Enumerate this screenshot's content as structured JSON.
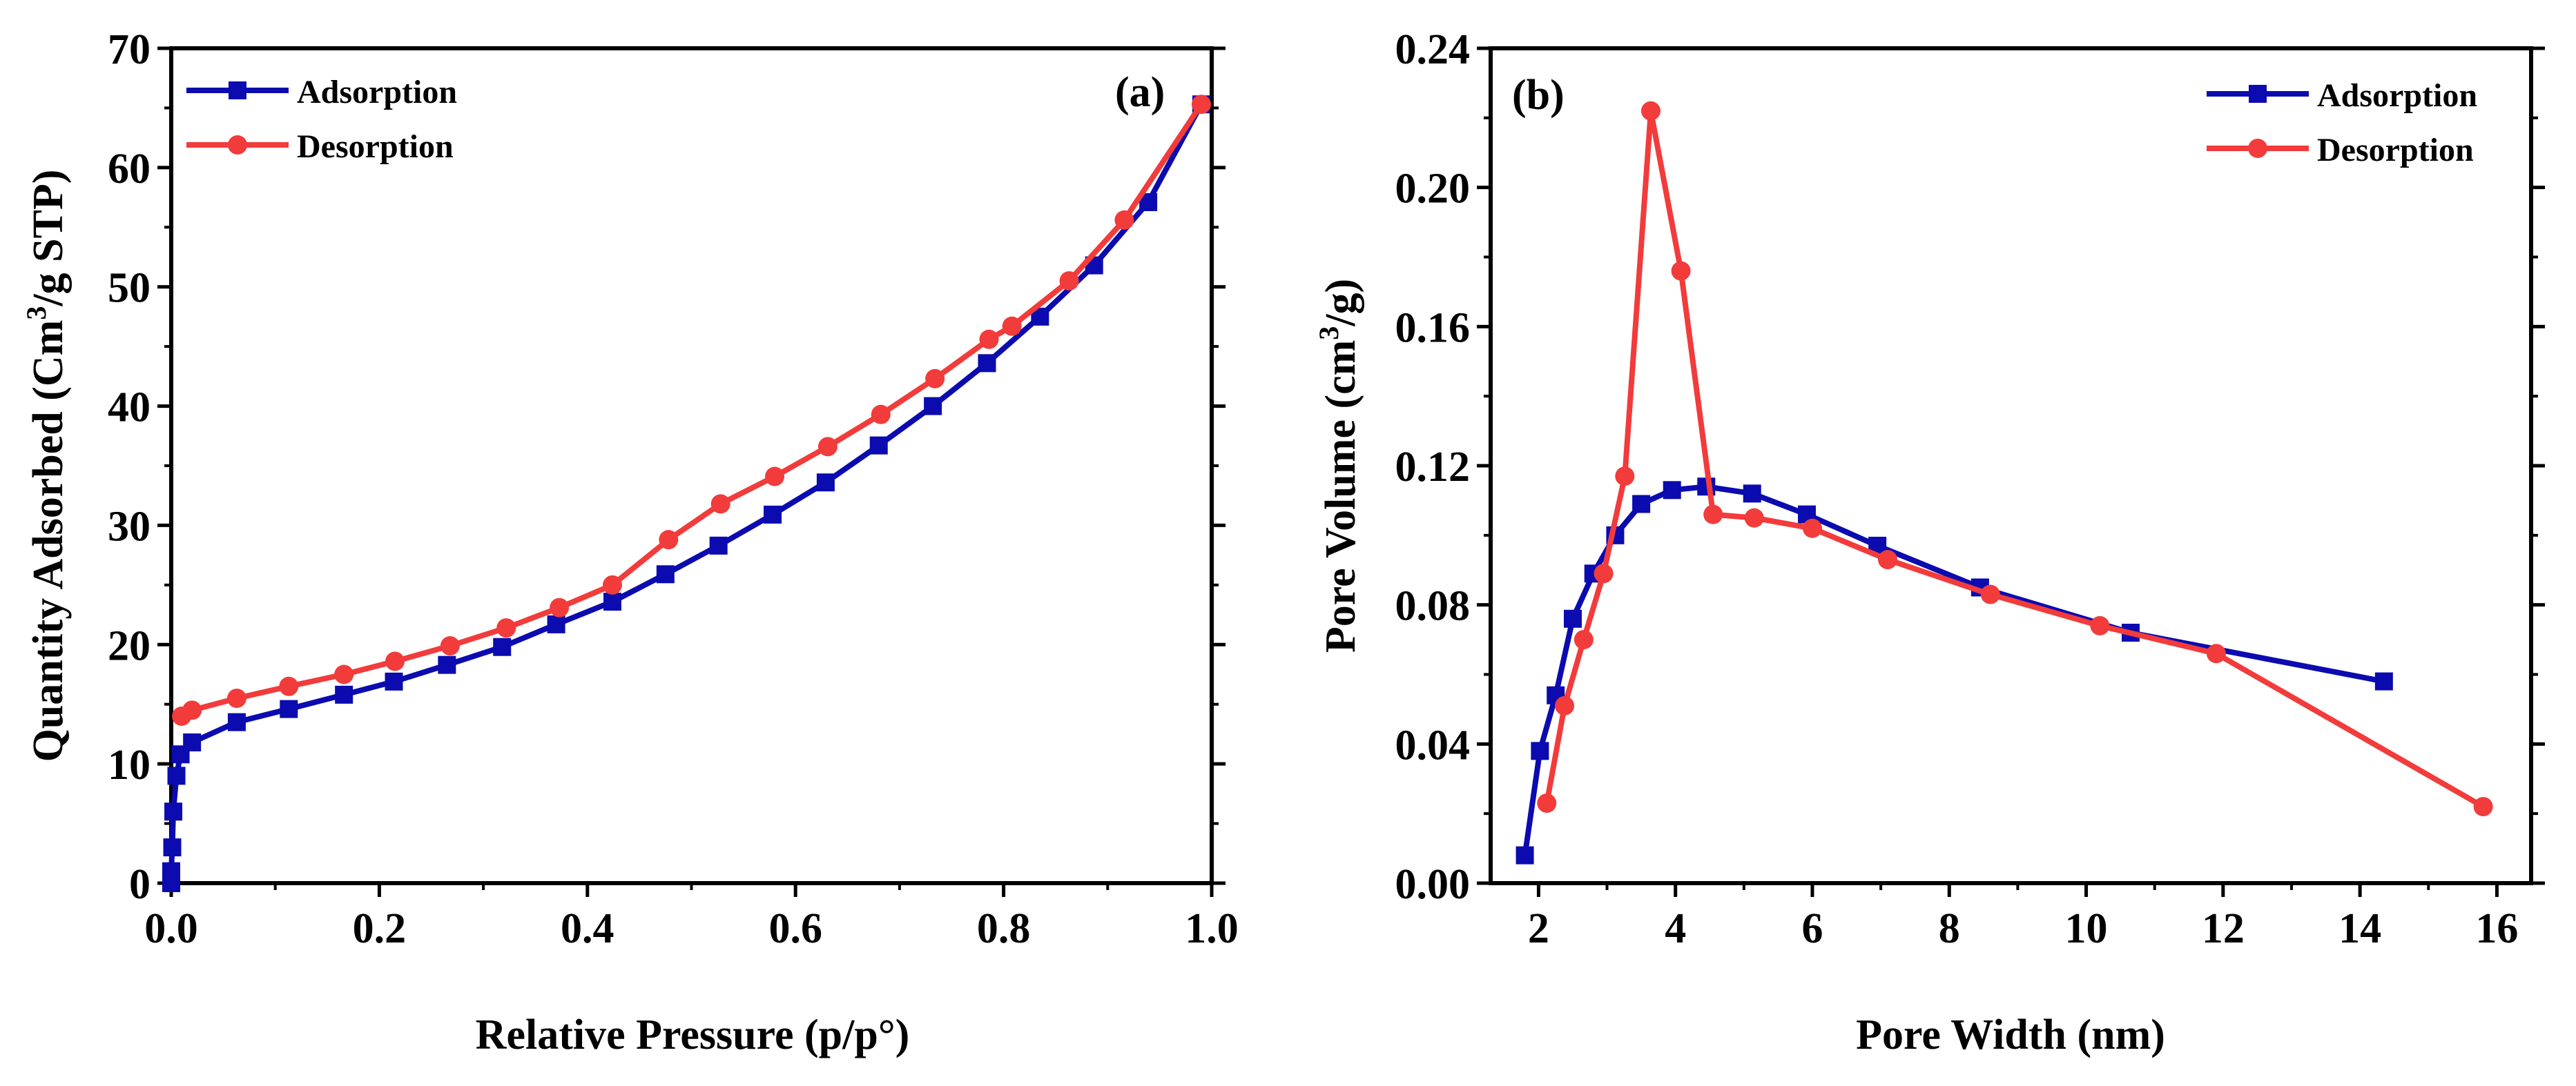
{
  "colors": {
    "adsorption": "#0b0bb0",
    "desorption": "#f23b3b",
    "axis": "#000000",
    "background": "#ffffff"
  },
  "chart_data": [
    {
      "type": "line",
      "panel_label": "(a)",
      "xlabel": "Relative Pressure (p/p°)",
      "ylabel": {
        "base": "Quantity Adsorbed (Cm",
        "sup": "3",
        "rest": "/g STP)"
      },
      "xlim": [
        0,
        1.0
      ],
      "ylim": [
        0,
        70
      ],
      "xticks": [
        0.0,
        0.2,
        0.4,
        0.6,
        0.8,
        1.0
      ],
      "xtick_labels": [
        "0.0",
        "0.2",
        "0.4",
        "0.6",
        "0.8",
        "1.0"
      ],
      "yticks": [
        0,
        10,
        20,
        30,
        40,
        50,
        60,
        70
      ],
      "ytick_labels": [
        "0",
        "10",
        "20",
        "30",
        "40",
        "50",
        "60",
        "70"
      ],
      "x_minor_step": 0.1,
      "y_minor_step": 5,
      "legend_position": "top-left",
      "series": [
        {
          "name": "Adsorption",
          "marker": "square",
          "color_key": "adsorption",
          "x": [
            0.0,
            0.0,
            0.001,
            0.002,
            0.005,
            0.009,
            0.02,
            0.063,
            0.113,
            0.166,
            0.214,
            0.265,
            0.318,
            0.37,
            0.424,
            0.475,
            0.526,
            0.578,
            0.629,
            0.68,
            0.732,
            0.784,
            0.835,
            0.887,
            0.939,
            0.99
          ],
          "y": [
            0.0,
            1.0,
            3.0,
            6.0,
            9.0,
            10.8,
            11.8,
            13.5,
            14.6,
            15.8,
            16.9,
            18.3,
            19.8,
            21.7,
            23.6,
            25.9,
            28.3,
            30.9,
            33.6,
            36.7,
            40.0,
            43.6,
            47.5,
            51.8,
            57.1,
            65.3
          ]
        },
        {
          "name": "Desorption",
          "marker": "circle",
          "color_key": "desorption",
          "x": [
            0.99,
            0.916,
            0.863,
            0.808,
            0.786,
            0.734,
            0.682,
            0.631,
            0.58,
            0.528,
            0.478,
            0.424,
            0.373,
            0.322,
            0.268,
            0.215,
            0.166,
            0.113,
            0.063,
            0.02,
            0.01
          ],
          "y": [
            65.3,
            55.6,
            50.5,
            46.7,
            45.6,
            42.3,
            39.3,
            36.6,
            34.1,
            31.8,
            28.8,
            25.0,
            23.1,
            21.4,
            19.9,
            18.6,
            17.5,
            16.5,
            15.5,
            14.5,
            14.0
          ]
        }
      ]
    },
    {
      "type": "line",
      "panel_label": "(b)",
      "xlabel": "Pore Width (nm)",
      "ylabel": {
        "base": "Pore Volume (cm",
        "sup": "3",
        "rest": "/g)"
      },
      "xlim": [
        1.3,
        16.5
      ],
      "ylim": [
        0,
        0.24
      ],
      "xticks": [
        2,
        4,
        6,
        8,
        10,
        12,
        14,
        16
      ],
      "xtick_labels": [
        "2",
        "4",
        "6",
        "8",
        "10",
        "12",
        "14",
        "16"
      ],
      "yticks": [
        0,
        0.04,
        0.08,
        0.12,
        0.16,
        0.2,
        0.24
      ],
      "ytick_labels": [
        "0.00",
        "0.04",
        "0.08",
        "0.12",
        "0.16",
        "0.20",
        "0.24"
      ],
      "x_minor_step": 1,
      "y_minor_step": 0.02,
      "legend_position": "top-right",
      "series": [
        {
          "name": "Adsorption",
          "marker": "square",
          "color_key": "adsorption",
          "x": [
            1.8,
            2.02,
            2.25,
            2.5,
            2.8,
            3.12,
            3.5,
            3.95,
            4.45,
            5.12,
            5.92,
            6.95,
            8.45,
            10.65,
            14.35
          ],
          "y": [
            0.008,
            0.038,
            0.054,
            0.076,
            0.089,
            0.1,
            0.109,
            0.113,
            0.114,
            0.112,
            0.106,
            0.097,
            0.085,
            0.072,
            0.058
          ]
        },
        {
          "name": "Desorption",
          "marker": "circle",
          "color_key": "desorption",
          "x": [
            2.12,
            2.38,
            2.66,
            2.95,
            3.26,
            3.64,
            4.08,
            4.55,
            5.15,
            6.0,
            7.1,
            8.6,
            10.2,
            11.9,
            15.8
          ],
          "y": [
            0.023,
            0.051,
            0.07,
            0.089,
            0.117,
            0.222,
            0.176,
            0.106,
            0.105,
            0.102,
            0.093,
            0.083,
            0.074,
            0.066,
            0.022
          ]
        }
      ]
    }
  ]
}
